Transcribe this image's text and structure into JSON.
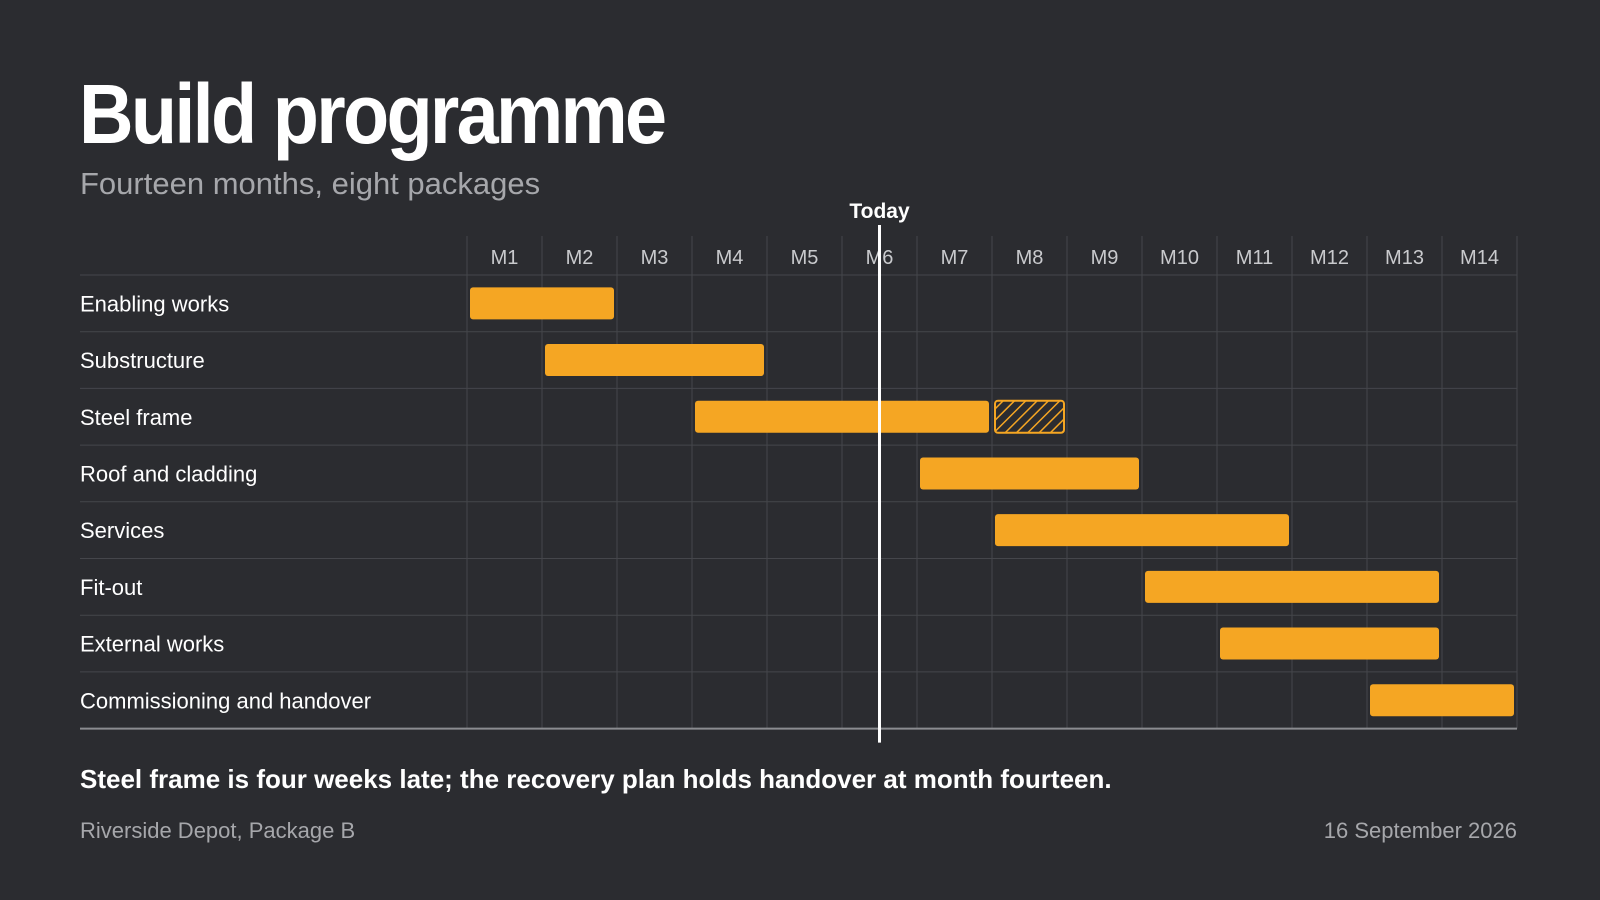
{
  "header": {
    "title": "Build programme",
    "subtitle": "Fourteen months, eight packages"
  },
  "footer": {
    "takeaway": "Steel frame is four weeks late; the recovery plan holds handover at month fourteen.",
    "source": "Riverside Depot, Package B",
    "date": "16 September 2026"
  },
  "colors": {
    "bar": "#f5a623",
    "today_line": "#ffffff",
    "grid": "#45464b",
    "axis": "#8b8c90"
  },
  "chart_data": {
    "type": "gantt",
    "months": [
      "M1",
      "M2",
      "M3",
      "M4",
      "M5",
      "M6",
      "M7",
      "M8",
      "M9",
      "M10",
      "M11",
      "M12",
      "M13",
      "M14"
    ],
    "today_label": "Today",
    "today_month": 6,
    "tasks": [
      {
        "name": "Enabling works",
        "start": 1,
        "end": 2
      },
      {
        "name": "Substructure",
        "start": 2,
        "end": 4
      },
      {
        "name": "Steel frame",
        "start": 4,
        "end": 7,
        "slip": {
          "start": 8,
          "end": 8
        }
      },
      {
        "name": "Roof and cladding",
        "start": 7,
        "end": 9
      },
      {
        "name": "Services",
        "start": 8,
        "end": 11
      },
      {
        "name": "Fit-out",
        "start": 10,
        "end": 13
      },
      {
        "name": "External works",
        "start": 11,
        "end": 13
      },
      {
        "name": "Commissioning and handover",
        "start": 13,
        "end": 14
      }
    ]
  }
}
